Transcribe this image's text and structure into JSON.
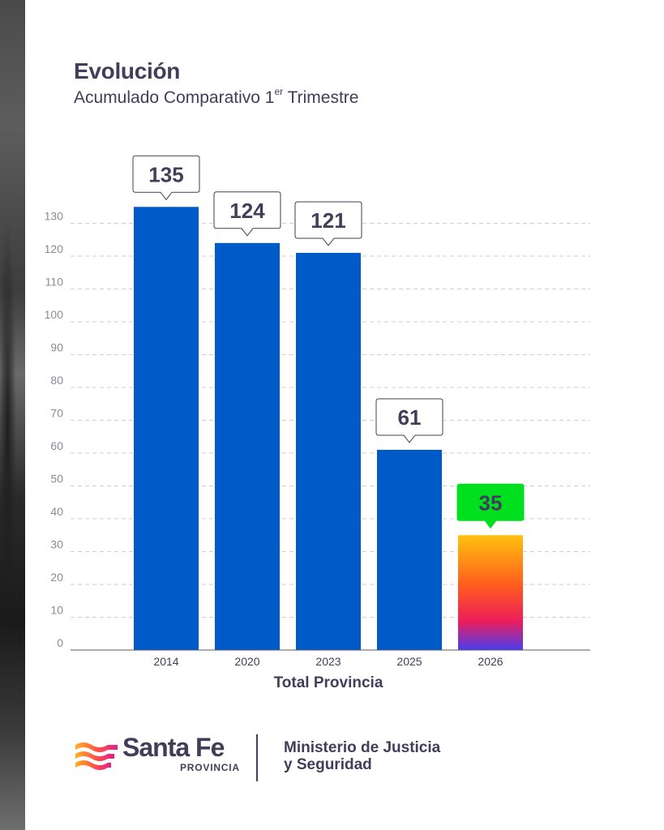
{
  "header": {
    "title": "Evolución",
    "subtitle_main": "Acumulado Comparativo 1",
    "subtitle_sup": "er",
    "subtitle_end": " Trimestre"
  },
  "chart_data": {
    "type": "bar",
    "title": "Evolución",
    "subtitle": "Acumulado Comparativo 1er Trimestre",
    "categories": [
      "2014",
      "2020",
      "2023",
      "2025",
      "2026"
    ],
    "values": [
      135,
      124,
      121,
      61,
      35
    ],
    "value_labels": [
      "135",
      "124",
      "121",
      "61",
      "35"
    ],
    "xlabel": "Total Provincia",
    "ylabel": "",
    "ylim": [
      0,
      130
    ],
    "yticks": [
      0,
      10,
      20,
      30,
      40,
      50,
      60,
      70,
      80,
      90,
      100,
      110,
      120,
      130
    ],
    "grid": true,
    "highlight_index": 4,
    "colors": {
      "bar": "#005bc8",
      "highlight_gradient": [
        "#ffc20e",
        "#ff5a1f",
        "#ec1d5c",
        "#4a3df0"
      ],
      "highlight_label_bg": "#00e01e",
      "label_box_border": "#3f3f5a",
      "grid": "#cfcfd6",
      "axis": "#5a5a6a"
    }
  },
  "footer": {
    "brand_name": "Santa Fe",
    "brand_sub": "PROVINCIA",
    "ministry_line1": "Ministerio de Justicia",
    "ministry_line2": "y Seguridad"
  }
}
